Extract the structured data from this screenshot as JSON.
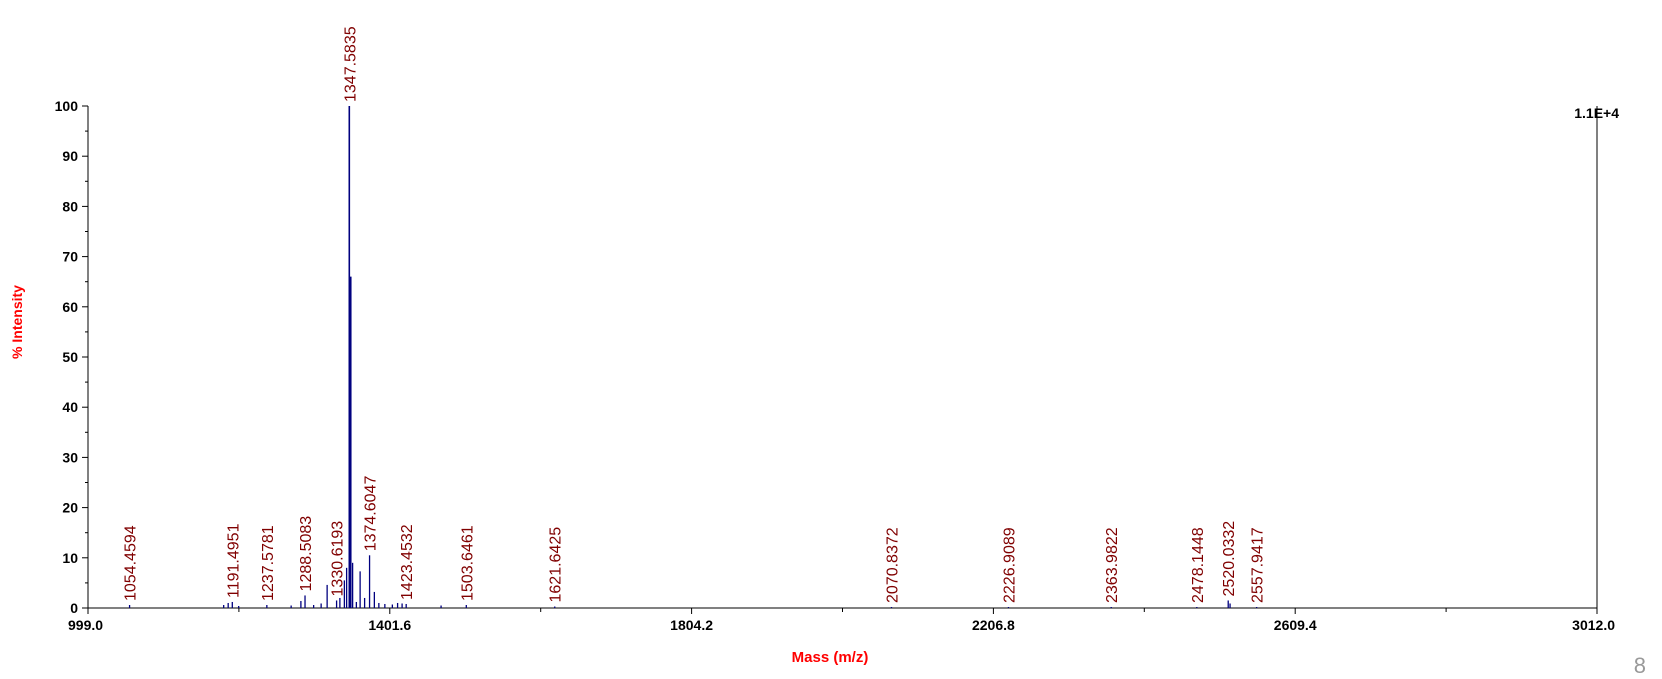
{
  "chart_data": {
    "type": "line",
    "title": "",
    "xlabel": "Mass (m/z)",
    "ylabel": "% Intensity",
    "xlim": [
      999.0,
      3012.0
    ],
    "ylim": [
      0,
      100
    ],
    "x_ticks": [
      "999.0",
      "1401.6",
      "1804.2",
      "2206.8",
      "2609.4",
      "3012.0"
    ],
    "y_ticks": [
      "0",
      "10",
      "20",
      "30",
      "40",
      "50",
      "60",
      "70",
      "80",
      "90",
      "100"
    ],
    "y_ticks_values": [
      0,
      10,
      20,
      30,
      40,
      50,
      60,
      70,
      80,
      90,
      100
    ],
    "x_ticks_values": [
      999.0,
      1401.6,
      1804.2,
      2206.8,
      2609.4,
      3012.0
    ],
    "max_intensity_label": "1.1E+4",
    "grid": false,
    "colors": {
      "spectrum": "#00007f",
      "peak_label": "#800000",
      "axis_label": "#ff0000"
    },
    "peaks": [
      {
        "mz": 1054.4594,
        "intensity": 0.6,
        "label": "1054.4594"
      },
      {
        "mz": 1191.4951,
        "intensity": 1.2,
        "label": "1191.4951"
      },
      {
        "mz": 1237.5781,
        "intensity": 0.6,
        "label": "1237.5781"
      },
      {
        "mz": 1288.5083,
        "intensity": 2.5,
        "label": "1288.5083"
      },
      {
        "mz": 1330.6193,
        "intensity": 1.5,
        "label": "1330.6193"
      },
      {
        "mz": 1347.5835,
        "intensity": 100,
        "label": "1347.5835"
      },
      {
        "mz": 1374.6047,
        "intensity": 10.5,
        "label": "1374.6047"
      },
      {
        "mz": 1423.4532,
        "intensity": 0.8,
        "label": "1423.4532"
      },
      {
        "mz": 1503.6461,
        "intensity": 0.6,
        "label": "1503.6461"
      },
      {
        "mz": 1621.6425,
        "intensity": 0.3,
        "label": "1621.6425"
      },
      {
        "mz": 2070.8372,
        "intensity": 0.2,
        "label": "2070.8372"
      },
      {
        "mz": 2226.9089,
        "intensity": 0.2,
        "label": "2226.9089"
      },
      {
        "mz": 2363.9822,
        "intensity": 0.2,
        "label": "2363.9822"
      },
      {
        "mz": 2478.1448,
        "intensity": 0.2,
        "label": "2478.1448"
      },
      {
        "mz": 2520.0332,
        "intensity": 1.5,
        "label": "2520.0332"
      },
      {
        "mz": 2557.9417,
        "intensity": 0.2,
        "label": "2557.9417"
      }
    ],
    "unlabeled_peaks": [
      {
        "mz": 1180.0,
        "intensity": 0.6
      },
      {
        "mz": 1186.0,
        "intensity": 1.0
      },
      {
        "mz": 1200.0,
        "intensity": 0.4
      },
      {
        "mz": 1270.0,
        "intensity": 0.5
      },
      {
        "mz": 1283.0,
        "intensity": 1.4
      },
      {
        "mz": 1300.0,
        "intensity": 0.6
      },
      {
        "mz": 1310.0,
        "intensity": 0.9
      },
      {
        "mz": 1318.0,
        "intensity": 4.6
      },
      {
        "mz": 1335.0,
        "intensity": 2.0
      },
      {
        "mz": 1341.0,
        "intensity": 5.5
      },
      {
        "mz": 1344.0,
        "intensity": 8.0
      },
      {
        "mz": 1349.5,
        "intensity": 66
      },
      {
        "mz": 1352.0,
        "intensity": 9.0
      },
      {
        "mz": 1357.0,
        "intensity": 1.2
      },
      {
        "mz": 1362.0,
        "intensity": 7.3
      },
      {
        "mz": 1368.0,
        "intensity": 2.0
      },
      {
        "mz": 1381.0,
        "intensity": 3.2
      },
      {
        "mz": 1387.0,
        "intensity": 1.0
      },
      {
        "mz": 1395.0,
        "intensity": 0.8
      },
      {
        "mz": 1405.0,
        "intensity": 0.7
      },
      {
        "mz": 1412.0,
        "intensity": 1.0
      },
      {
        "mz": 1418.0,
        "intensity": 0.9
      },
      {
        "mz": 1470.0,
        "intensity": 0.5
      },
      {
        "mz": 2522.5,
        "intensity": 0.9
      }
    ]
  },
  "page_number": "8"
}
